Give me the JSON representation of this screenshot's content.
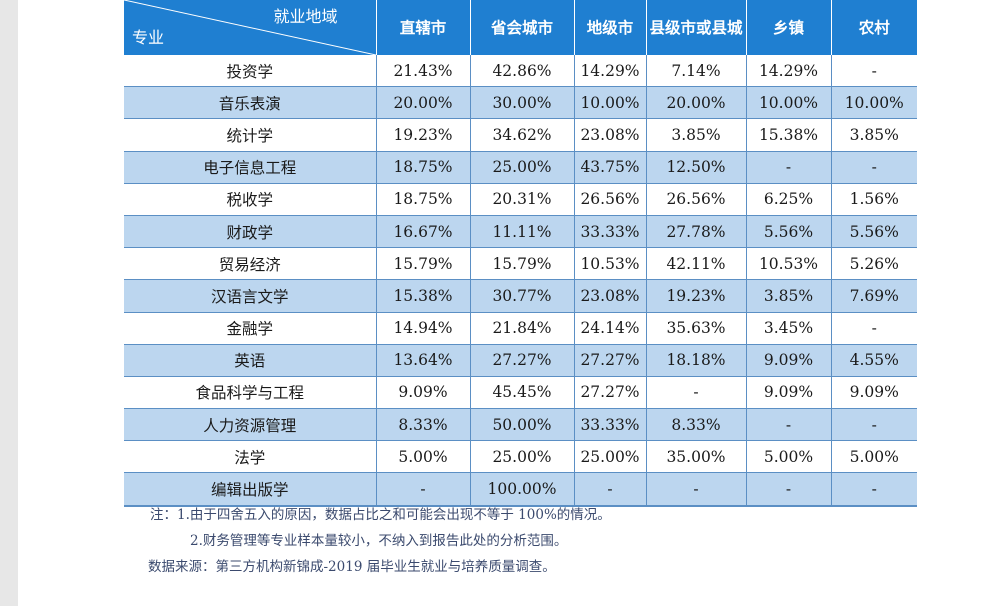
{
  "chart_data": {
    "type": "table",
    "header": {
      "corner_top": "就业地域",
      "corner_bottom": "专业",
      "columns": [
        "直辖市",
        "省会城市",
        "地级市",
        "县级市或县城",
        "乡镇",
        "农村"
      ]
    },
    "rows": [
      {
        "major": "投资学",
        "values": [
          "21.43%",
          "42.86%",
          "14.29%",
          "7.14%",
          "14.29%",
          "-"
        ]
      },
      {
        "major": "音乐表演",
        "values": [
          "20.00%",
          "30.00%",
          "10.00%",
          "20.00%",
          "10.00%",
          "10.00%"
        ]
      },
      {
        "major": "统计学",
        "values": [
          "19.23%",
          "34.62%",
          "23.08%",
          "3.85%",
          "15.38%",
          "3.85%"
        ]
      },
      {
        "major": "电子信息工程",
        "values": [
          "18.75%",
          "25.00%",
          "43.75%",
          "12.50%",
          "-",
          "-"
        ]
      },
      {
        "major": "税收学",
        "values": [
          "18.75%",
          "20.31%",
          "26.56%",
          "26.56%",
          "6.25%",
          "1.56%"
        ]
      },
      {
        "major": "财政学",
        "values": [
          "16.67%",
          "11.11%",
          "33.33%",
          "27.78%",
          "5.56%",
          "5.56%"
        ]
      },
      {
        "major": "贸易经济",
        "values": [
          "15.79%",
          "15.79%",
          "10.53%",
          "42.11%",
          "10.53%",
          "5.26%"
        ]
      },
      {
        "major": "汉语言文学",
        "values": [
          "15.38%",
          "30.77%",
          "23.08%",
          "19.23%",
          "3.85%",
          "7.69%"
        ]
      },
      {
        "major": "金融学",
        "values": [
          "14.94%",
          "21.84%",
          "24.14%",
          "35.63%",
          "3.45%",
          "-"
        ]
      },
      {
        "major": "英语",
        "values": [
          "13.64%",
          "27.27%",
          "27.27%",
          "18.18%",
          "9.09%",
          "4.55%"
        ]
      },
      {
        "major": "食品科学与工程",
        "values": [
          "9.09%",
          "45.45%",
          "27.27%",
          "-",
          "9.09%",
          "9.09%"
        ]
      },
      {
        "major": "人力资源管理",
        "values": [
          "8.33%",
          "50.00%",
          "33.33%",
          "8.33%",
          "-",
          "-"
        ]
      },
      {
        "major": "法学",
        "values": [
          "5.00%",
          "25.00%",
          "25.00%",
          "35.00%",
          "5.00%",
          "5.00%"
        ]
      },
      {
        "major": "编辑出版学",
        "values": [
          "-",
          "100.00%",
          "-",
          "-",
          "-",
          "-"
        ]
      }
    ]
  },
  "notes": {
    "note1": "注：1.由于四舍五入的原因，数据占比之和可能会出现不等于 100%的情况。",
    "note2": "2.财务管理等专业样本量较小，不纳入到报告此处的分析范围。",
    "source": "数据来源：第三方机构新锦成-2019 届毕业生就业与培养质量调查。"
  },
  "colors": {
    "header_bg": "#1f7fd1",
    "row_alt_bg": "#bcd6ef",
    "row_bg": "#ffffff",
    "grid": "#5b8fc4",
    "note_text": "#3b4a6e"
  }
}
